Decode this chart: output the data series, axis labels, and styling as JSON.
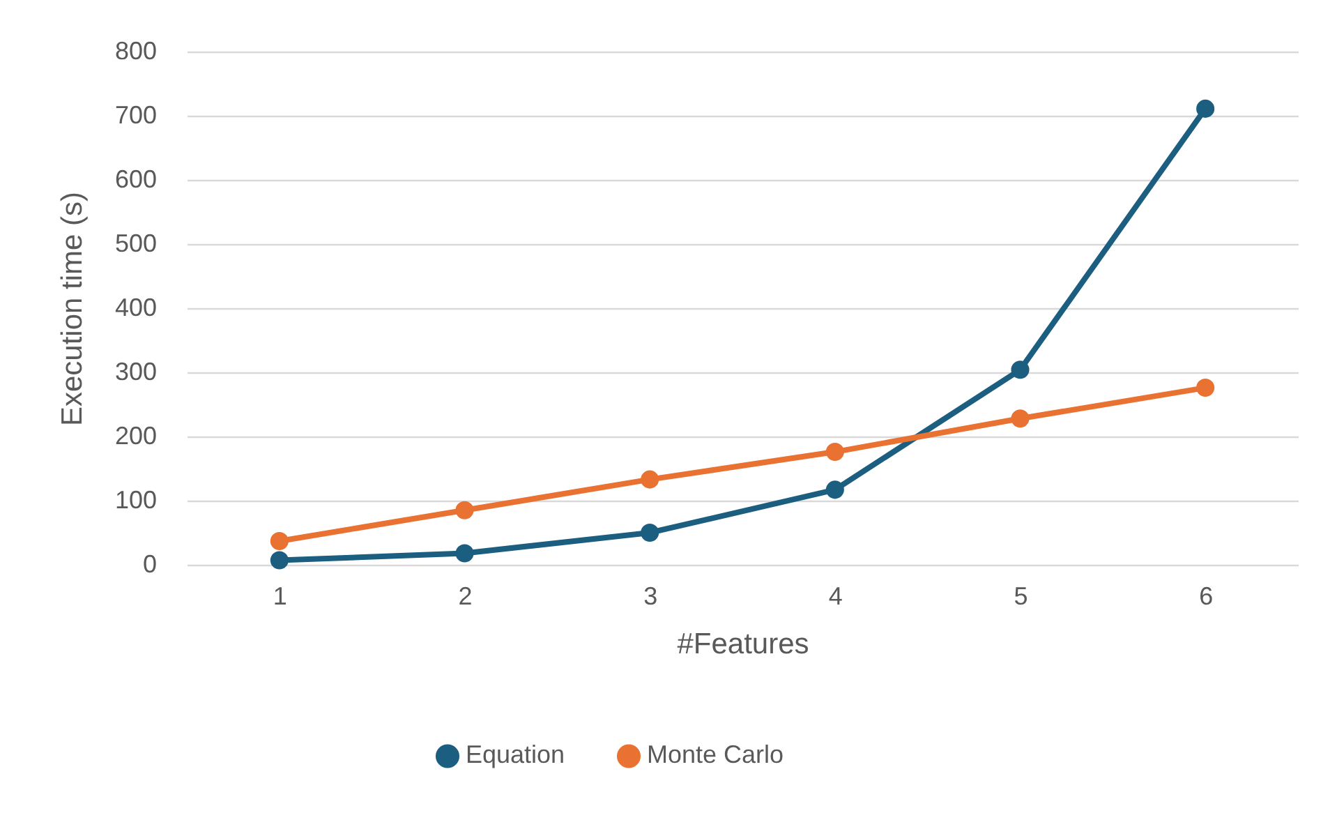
{
  "chart_data": {
    "type": "line",
    "xlabel": "#Features",
    "ylabel": "Execution time (s)",
    "categories": [
      "1",
      "2",
      "3",
      "4",
      "5",
      "6"
    ],
    "series": [
      {
        "name": "Equation",
        "color": "#1b5e80",
        "values": [
          7,
          18,
          50,
          117,
          304,
          711
        ]
      },
      {
        "name": "Monte Carlo",
        "color": "#e97132",
        "values": [
          37,
          85,
          133,
          176,
          228,
          276
        ]
      }
    ],
    "ylim": [
      0,
      800
    ],
    "yticks": [
      0,
      100,
      200,
      300,
      400,
      500,
      600,
      700,
      800
    ],
    "grid": "y",
    "legend": "bottom",
    "marker": "circle",
    "line_style": "solid"
  }
}
